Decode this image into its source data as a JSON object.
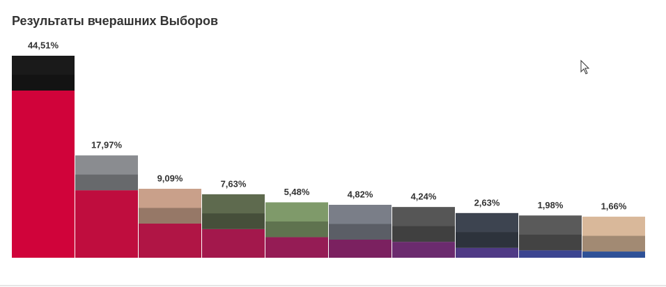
{
  "chart_data": {
    "type": "bar",
    "title": "Результаты вчерашних Выборов",
    "values": [
      44.51,
      17.97,
      9.09,
      7.63,
      5.48,
      4.82,
      4.24,
      2.63,
      1.98,
      1.66
    ],
    "value_labels": [
      "44,51%",
      "17,97%",
      "9,09%",
      "7,63%",
      "5,48%",
      "4,82%",
      "4,24%",
      "2,63%",
      "1,98%",
      "1,66%"
    ],
    "colors": [
      "#d0033a",
      "#bf0d3e",
      "#b01545",
      "#a3184c",
      "#951c55",
      "#7b2160",
      "#6b2b6e",
      "#4f3a85",
      "#3c4590",
      "#2e5197"
    ]
  }
}
